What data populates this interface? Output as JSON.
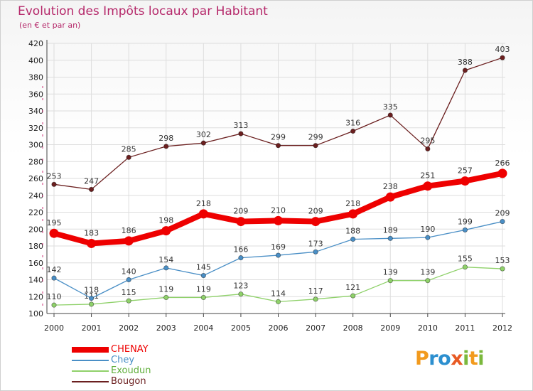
{
  "title": "Evolution des Impôts locaux par Habitant",
  "subtitle": "(en € et par an)",
  "logo": {
    "text": "Proxiti",
    "letters": [
      "P",
      "r",
      "o",
      "x",
      "i",
      "t",
      "i"
    ],
    "colors": [
      "#f29a1d",
      "#2c8fcf",
      "#2c8fcf",
      "#e85a23",
      "#7ab83c",
      "#f29a1d",
      "#7ab83c"
    ]
  },
  "chart_data": {
    "type": "line",
    "title": "Evolution des Impôts locaux par Habitant",
    "subtitle": "(en € et par an)",
    "xlabel": "",
    "ylabel": "",
    "categories": [
      "2000",
      "2001",
      "2002",
      "2003",
      "2004",
      "2005",
      "2006",
      "2007",
      "2008",
      "2009",
      "2010",
      "2011",
      "2012"
    ],
    "ylim": [
      100,
      420
    ],
    "yticks": [
      100,
      120,
      140,
      160,
      180,
      200,
      220,
      240,
      260,
      280,
      300,
      320,
      340,
      360,
      380,
      400,
      420
    ],
    "grid": true,
    "legend_position": "bottom-left",
    "series": [
      {
        "name": "CHENAY",
        "color": "#ee0000",
        "values": [
          195,
          183,
          186,
          198,
          218,
          209,
          210,
          209,
          218,
          238,
          251,
          257,
          266
        ]
      },
      {
        "name": "Chey",
        "color": "#4a8fc6",
        "values": [
          142,
          118,
          140,
          154,
          145,
          166,
          169,
          173,
          188,
          189,
          190,
          199,
          209
        ]
      },
      {
        "name": "Exoudun",
        "color": "#8fd16a",
        "values": [
          110,
          111,
          115,
          119,
          119,
          123,
          114,
          117,
          121,
          139,
          139,
          155,
          153
        ]
      },
      {
        "name": "Bougon",
        "color": "#6b1f1f",
        "values": [
          253,
          247,
          285,
          298,
          302,
          313,
          299,
          299,
          316,
          335,
          295,
          388,
          403
        ]
      }
    ]
  }
}
